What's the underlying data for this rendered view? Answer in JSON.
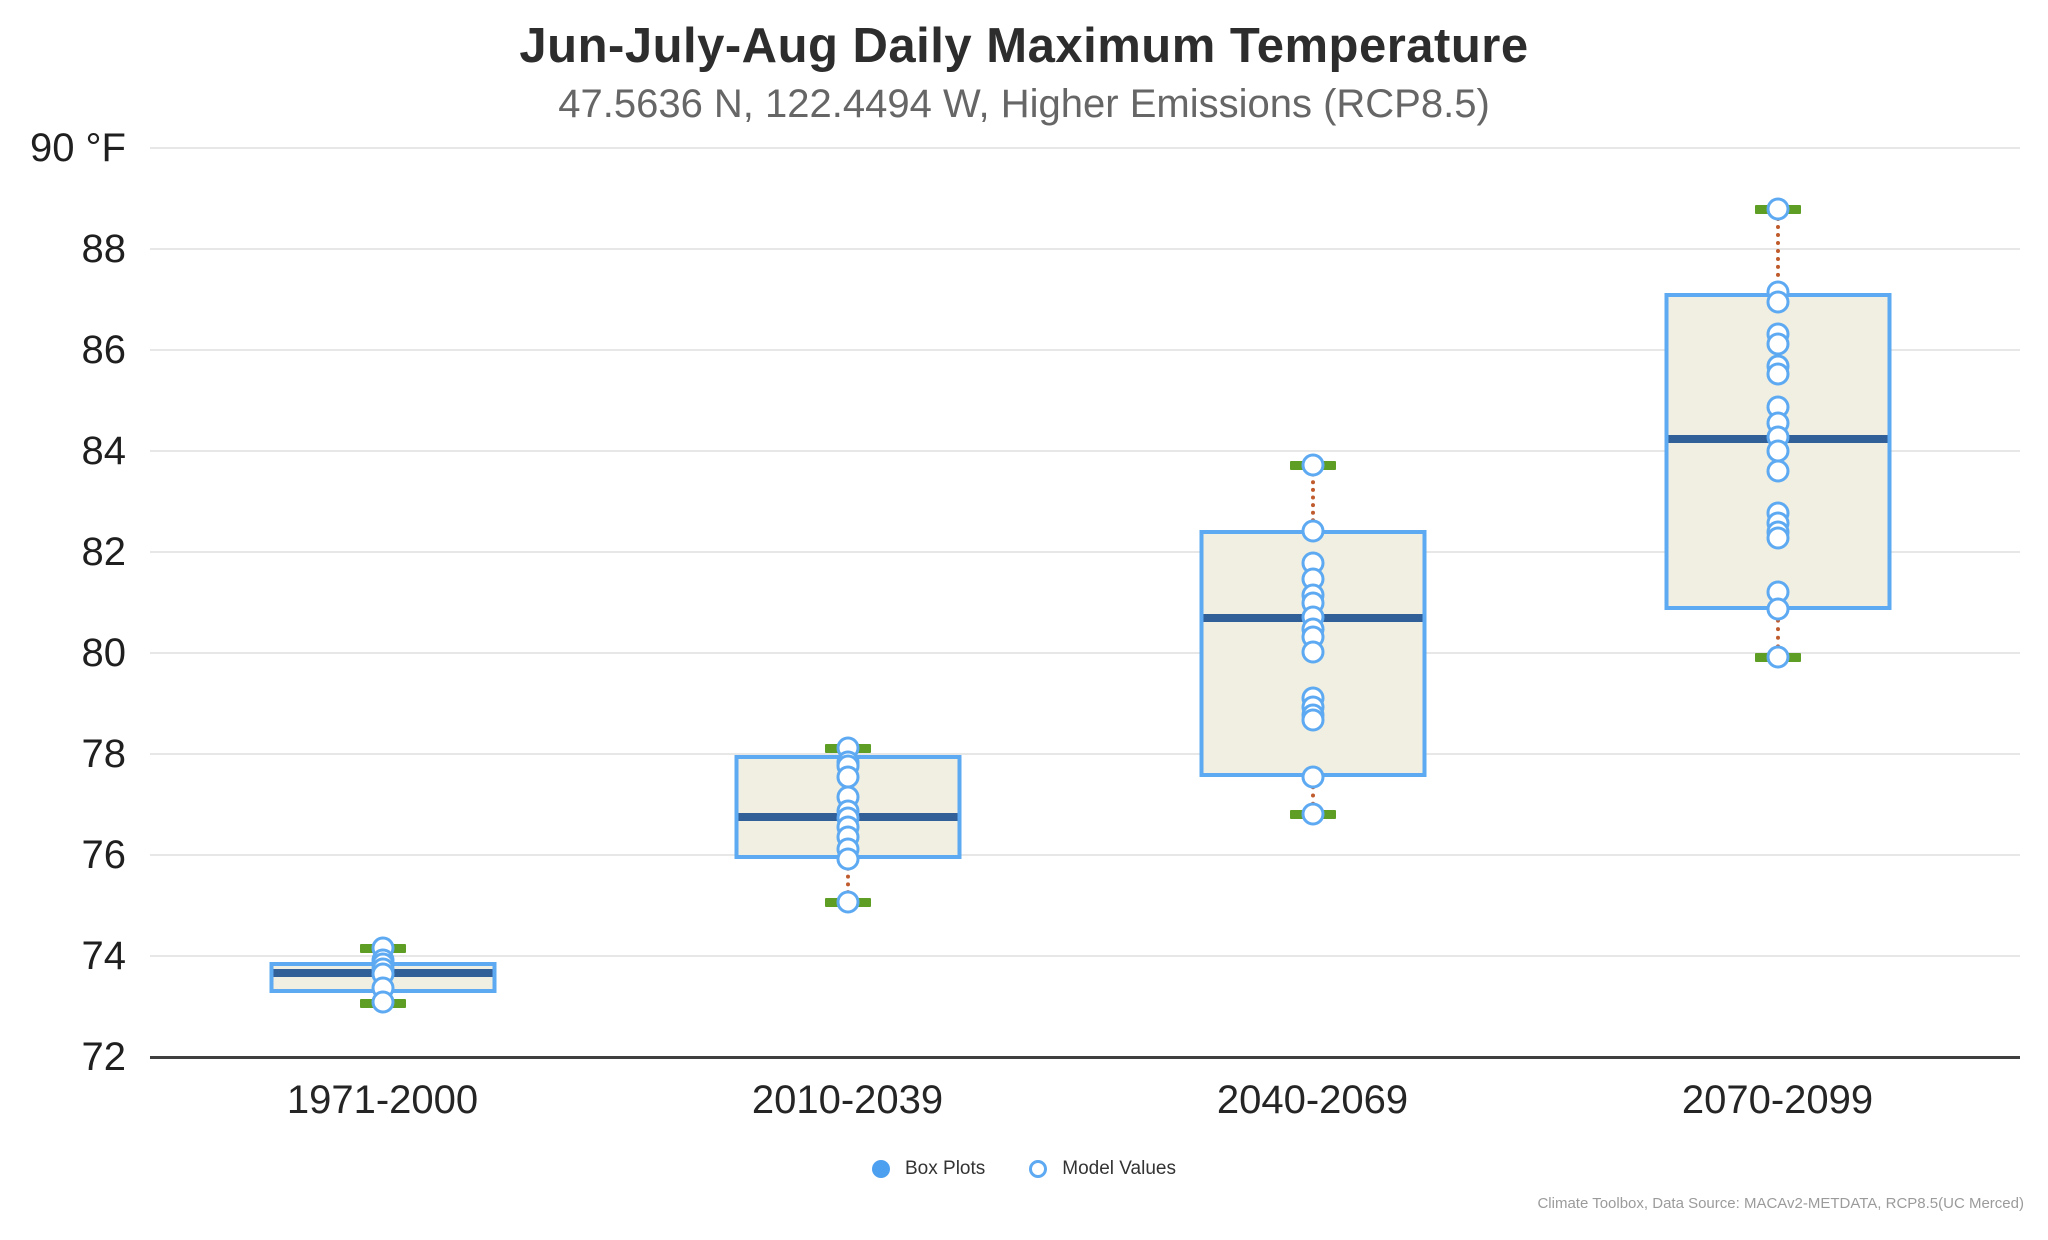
{
  "title": "Jun-July-Aug Daily Maximum Temperature",
  "subtitle": "47.5636 N, 122.4494 W, Higher Emissions (RCP8.5)",
  "legend": {
    "box_plots_label": "Box Plots",
    "model_values_label": "Model Values"
  },
  "source_note": "Climate Toolbox, Data Source: MACAv2-METDATA, RCP8.5(UC Merced)",
  "colors": {
    "box_border_blue": "#5da9f2",
    "box_fill_cream": "#f0efe1",
    "median_navy": "#315f98",
    "whisker_cap_green": "#5f9e24",
    "whisker_dotted_rust": "#bf5b2d",
    "point_ring_blue": "#5da9f2",
    "legend_filled_blue": "#4d9ff0",
    "gridline_gray": "#e7e7e7",
    "axis_line_dark": "#3f3f3f",
    "title_color": "#2d2d2d",
    "subtitle_color": "#666666"
  },
  "chart_data": {
    "type": "boxplot",
    "title": "Jun-July-Aug Daily Maximum Temperature",
    "subtitle": "47.5636 N, 122.4494 W, Higher Emissions (RCP8.5)",
    "unit": "°F",
    "xlabel": "",
    "ylabel": "°F",
    "ylim": [
      72,
      90
    ],
    "grid": true,
    "legend_position": "bottom-center",
    "y_axis": {
      "ticks": [
        {
          "value": 90,
          "label": "90 °F"
        },
        {
          "value": 88,
          "label": "88"
        },
        {
          "value": 86,
          "label": "86"
        },
        {
          "value": 84,
          "label": "84"
        },
        {
          "value": 82,
          "label": "82"
        },
        {
          "value": 80,
          "label": "80"
        },
        {
          "value": 78,
          "label": "78"
        },
        {
          "value": 76,
          "label": "76"
        },
        {
          "value": 74,
          "label": "74"
        },
        {
          "value": 72,
          "label": "72"
        }
      ]
    },
    "categories": [
      "1971-2000",
      "2010-2039",
      "2040-2069",
      "2070-2099"
    ],
    "series": [
      {
        "category": "1971-2000",
        "whisker_low": 73.06,
        "q1": 73.27,
        "median": 73.67,
        "q3": 73.89,
        "whisker_high": 74.15,
        "model_values": [
          74.15,
          73.93,
          73.84,
          73.74,
          73.65,
          73.37,
          73.08
        ]
      },
      {
        "category": "2010-2039",
        "whisker_low": 75.06,
        "q1": 75.93,
        "median": 76.75,
        "q3": 77.98,
        "whisker_high": 78.11,
        "model_values": [
          78.11,
          77.84,
          77.77,
          77.54,
          77.15,
          76.88,
          76.74,
          76.55,
          76.35,
          76.12,
          75.92,
          75.06
        ]
      },
      {
        "category": "2040-2069",
        "whisker_low": 76.81,
        "q1": 77.55,
        "median": 80.69,
        "q3": 82.44,
        "whisker_high": 83.72,
        "model_values": [
          83.72,
          82.42,
          81.78,
          81.47,
          81.15,
          80.99,
          80.71,
          80.47,
          80.32,
          80.02,
          79.1,
          78.93,
          78.77,
          78.67,
          77.55,
          76.81
        ]
      },
      {
        "category": "2070-2099",
        "whisker_low": 79.92,
        "q1": 80.85,
        "median": 84.23,
        "q3": 87.13,
        "whisker_high": 88.79,
        "model_values": [
          88.79,
          87.15,
          86.95,
          86.32,
          86.12,
          85.68,
          85.52,
          84.88,
          84.55,
          84.27,
          84.0,
          83.6,
          82.78,
          82.58,
          82.4,
          82.28,
          81.2,
          80.88,
          79.92
        ]
      }
    ]
  }
}
